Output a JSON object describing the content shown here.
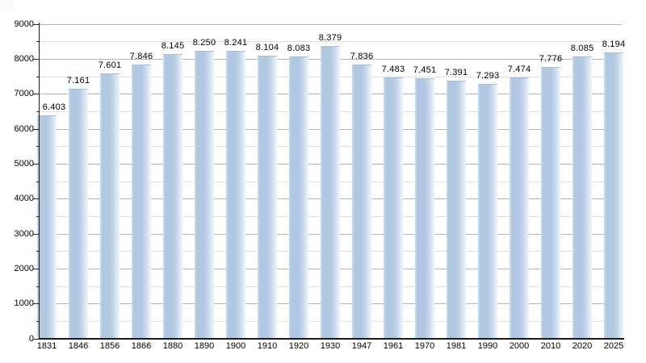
{
  "chart_data": {
    "type": "bar",
    "title": "",
    "xlabel": "",
    "ylabel": "",
    "categories": [
      "1831",
      "1846",
      "1856",
      "1866",
      "1880",
      "1890",
      "1900",
      "1910",
      "1920",
      "1930",
      "1947",
      "1961",
      "1970",
      "1981",
      "1990",
      "2000",
      "2010",
      "2020",
      "2025"
    ],
    "values": [
      6403,
      7161,
      7601,
      7846,
      8145,
      8250,
      8241,
      8104,
      8083,
      8379,
      7836,
      7483,
      7451,
      7391,
      7293,
      7474,
      7776,
      8085,
      8194
    ],
    "value_labels": [
      "6.403",
      "7.161",
      "7.601",
      "7.846",
      "8.145",
      "8.250",
      "8.241",
      "8.104",
      "8.083",
      "8.379",
      "7.836",
      "7.483",
      "7.451",
      "7.391",
      "7.293",
      "7.474",
      "7.776",
      "8.085",
      "8.194"
    ],
    "ylim": [
      0,
      9000
    ],
    "ytick_labels": [
      "0",
      "1000",
      "2000",
      "3000",
      "4000",
      "5000",
      "6000",
      "7000",
      "8000",
      "9000"
    ],
    "ytick_interval": 1000,
    "minor_grid_interval": 500,
    "grid": true,
    "legend": false
  },
  "colors": {
    "bar_body": "#b3c9e3",
    "bar_highlight": "#eef4fa",
    "bar_top_edge": "#a8bcd4",
    "major_grid": "#b5b5b5",
    "minor_grid": "#e0e0e0",
    "axis": "#1a1a1a",
    "text": "#000000",
    "background": "#ffffff"
  }
}
